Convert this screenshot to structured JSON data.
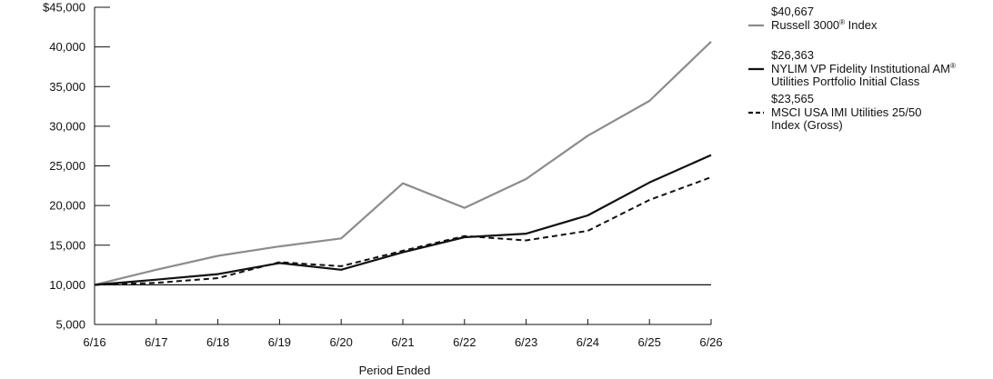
{
  "chart_data": {
    "type": "line",
    "xlabel": "Period Ended",
    "ylabel": "",
    "x": [
      "6/16",
      "6/17",
      "6/18",
      "6/19",
      "6/20",
      "6/21",
      "6/22",
      "6/23",
      "6/24",
      "6/25",
      "6/26"
    ],
    "ylim": [
      5000,
      45000
    ],
    "yticks": [
      {
        "value": 45000,
        "label": "$45,000"
      },
      {
        "value": 40000,
        "label": "40,000"
      },
      {
        "value": 35000,
        "label": "35,000"
      },
      {
        "value": 30000,
        "label": "30,000"
      },
      {
        "value": 25000,
        "label": "25,000"
      },
      {
        "value": 20000,
        "label": "20,000"
      },
      {
        "value": 15000,
        "label": "15,000"
      },
      {
        "value": 10000,
        "label": "10,000"
      },
      {
        "value": 5000,
        "label": "5,000"
      }
    ],
    "baseline": 10000,
    "legend_position": "right",
    "series": [
      {
        "name_lines": [
          "Russell 3000",
          "Index"
        ],
        "name_parts": [
          [
            "Russell 3000",
            "®",
            " Index"
          ]
        ],
        "end_value_label": "$40,667",
        "style": "solid",
        "color": "#8c8c8c",
        "values": [
          10000,
          11900,
          13650,
          14850,
          15850,
          22800,
          19700,
          23350,
          28800,
          33200,
          40667
        ]
      },
      {
        "name_parts": [
          [
            "NYLIM VP Fidelity Institutional AM",
            "®",
            ""
          ],
          [
            "Utilities Portfolio Initial Class",
            "",
            ""
          ]
        ],
        "end_value_label": "$26,363",
        "style": "solid",
        "color": "#111111",
        "values": [
          10000,
          10650,
          11350,
          12750,
          11900,
          14100,
          16000,
          16450,
          18750,
          22900,
          26363
        ]
      },
      {
        "name_parts": [
          [
            "MSCI USA IMI Utilities 25/50",
            "",
            ""
          ],
          [
            "Index (Gross)",
            "",
            ""
          ]
        ],
        "end_value_label": "$23,565",
        "style": "dashed",
        "color": "#111111",
        "values": [
          10000,
          10250,
          10850,
          12850,
          12350,
          14300,
          16150,
          15600,
          16800,
          20700,
          23565
        ]
      }
    ]
  }
}
